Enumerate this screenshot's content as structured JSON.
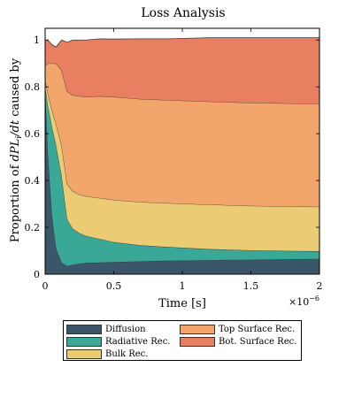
{
  "chart_data": {
    "type": "area",
    "title": "Loss Analysis",
    "xlabel": "Time [s]",
    "ylabel": "Proportion of dPL/dt caused by",
    "ylabel_parts": {
      "prefix": "Proportion of ",
      "math": "dPL",
      "subscript": "i",
      "suffix_math": "/dt",
      "rest": " caused by"
    },
    "x_multiplier": "×10",
    "x_multiplier_exponent": "−6",
    "xlim": [
      0,
      2
    ],
    "ylim": [
      0,
      1.05
    ],
    "xticks": [
      0,
      0.5,
      1,
      1.5,
      2
    ],
    "xtick_labels": [
      "0",
      "0.5",
      "1",
      "1.5",
      "2"
    ],
    "yticks": [
      0,
      0.2,
      0.4,
      0.6,
      0.8,
      1
    ],
    "ytick_labels": [
      "0",
      "0.2",
      "0.4",
      "0.6",
      "0.8",
      "1"
    ],
    "x": [
      0,
      0.02,
      0.05,
      0.08,
      0.12,
      0.16,
      0.2,
      0.25,
      0.3,
      0.4,
      0.5,
      0.7,
      0.9,
      1.2,
      1.5,
      1.8,
      2.0
    ],
    "series": [
      {
        "name": "Diffusion",
        "color": "#3b5668",
        "values": [
          0.79,
          0.52,
          0.25,
          0.11,
          0.05,
          0.035,
          0.04,
          0.045,
          0.048,
          0.05,
          0.052,
          0.055,
          0.058,
          0.06,
          0.062,
          0.064,
          0.065
        ]
      },
      {
        "name": "Radiative Rec.",
        "color": "#3aa896",
        "values": [
          0.01,
          0.2,
          0.38,
          0.44,
          0.37,
          0.2,
          0.155,
          0.13,
          0.115,
          0.1,
          0.085,
          0.068,
          0.058,
          0.047,
          0.04,
          0.035,
          0.033
        ]
      },
      {
        "name": "Bulk Rec.",
        "color": "#ebcb74",
        "values": [
          0.03,
          0.05,
          0.07,
          0.09,
          0.13,
          0.15,
          0.16,
          0.165,
          0.17,
          0.175,
          0.18,
          0.185,
          0.187,
          0.19,
          0.19,
          0.19,
          0.19
        ]
      },
      {
        "name": "Top Surface Rec.",
        "color": "#f3a66b",
        "values": [
          0.06,
          0.13,
          0.2,
          0.26,
          0.32,
          0.395,
          0.41,
          0.42,
          0.425,
          0.435,
          0.44,
          0.44,
          0.44,
          0.44,
          0.44,
          0.44,
          0.44
        ]
      },
      {
        "name": "Bot. Surface Rec.",
        "color": "#e97f61",
        "values": [
          0.11,
          0.1,
          0.08,
          0.07,
          0.13,
          0.21,
          0.235,
          0.24,
          0.242,
          0.245,
          0.247,
          0.257,
          0.262,
          0.273,
          0.278,
          0.281,
          0.282
        ]
      }
    ]
  }
}
